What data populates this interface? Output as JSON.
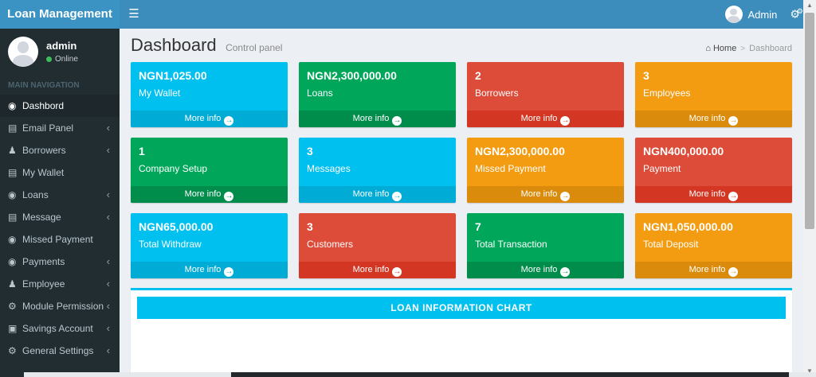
{
  "glyphs": {
    "hamburger": "☰",
    "gear": "⚙",
    "cogs": "⚙",
    "gauge": "◉",
    "panel": "▤",
    "users": "♟",
    "person": "♟",
    "savings": "▣",
    "home": "⌂",
    "chevron": "‹",
    "arrow": "→",
    "caret_up": "▲",
    "caret_down": "▼",
    "breadcrumb_sep": ">"
  },
  "app": {
    "title": "Loan Management"
  },
  "header": {
    "user_label": "Admin"
  },
  "sidebar": {
    "user": {
      "name": "admin",
      "status": "Online"
    },
    "section_label": "MAIN NAVIGATION",
    "items": [
      {
        "label": "Dashbord",
        "icon": "gauge",
        "active": true,
        "expandable": false
      },
      {
        "label": "Email Panel",
        "icon": "panel",
        "active": false,
        "expandable": true
      },
      {
        "label": "Borrowers",
        "icon": "users",
        "active": false,
        "expandable": true
      },
      {
        "label": "My Wallet",
        "icon": "panel",
        "active": false,
        "expandable": false
      },
      {
        "label": "Loans",
        "icon": "gauge",
        "active": false,
        "expandable": true
      },
      {
        "label": "Message",
        "icon": "panel",
        "active": false,
        "expandable": true
      },
      {
        "label": "Missed Payment",
        "icon": "gauge",
        "active": false,
        "expandable": false
      },
      {
        "label": "Payments",
        "icon": "gauge",
        "active": false,
        "expandable": true
      },
      {
        "label": "Employee",
        "icon": "person",
        "active": false,
        "expandable": true
      },
      {
        "label": "Module Permission",
        "icon": "cogs",
        "active": false,
        "expandable": true
      },
      {
        "label": "Savings Account",
        "icon": "savings",
        "active": false,
        "expandable": true
      },
      {
        "label": "General Settings",
        "icon": "gear",
        "active": false,
        "expandable": true
      }
    ]
  },
  "content": {
    "page_title": "Dashboard",
    "page_subtitle": "Control panel",
    "breadcrumb": {
      "home": "Home",
      "current": "Dashboard"
    },
    "boxes": [
      {
        "value": "NGN1,025.00",
        "label": "My Wallet",
        "color": "aqua",
        "more": "More info"
      },
      {
        "value": "NGN2,300,000.00",
        "label": "Loans",
        "color": "green",
        "more": "More info"
      },
      {
        "value": "2",
        "label": "Borrowers",
        "color": "red",
        "more": "More info"
      },
      {
        "value": "3",
        "label": "Employees",
        "color": "yellow",
        "more": "More info"
      },
      {
        "value": "1",
        "label": "Company Setup",
        "color": "green",
        "more": "More info"
      },
      {
        "value": "3",
        "label": "Messages",
        "color": "aqua",
        "more": "More info"
      },
      {
        "value": "NGN2,300,000.00",
        "label": "Missed Payment",
        "color": "yellow",
        "more": "More info"
      },
      {
        "value": "NGN400,000.00",
        "label": "Payment",
        "color": "red",
        "more": "More info"
      },
      {
        "value": "NGN65,000.00",
        "label": "Total Withdraw",
        "color": "aqua",
        "more": "More info"
      },
      {
        "value": "3",
        "label": "Customers",
        "color": "red",
        "more": "More info"
      },
      {
        "value": "7",
        "label": "Total Transaction",
        "color": "green",
        "more": "More info"
      },
      {
        "value": "NGN1,050,000.00",
        "label": "Total Deposit",
        "color": "yellow",
        "more": "More info"
      }
    ],
    "chart_panel": {
      "title": "LOAN INFORMATION CHART"
    }
  },
  "colors": {
    "navbar": "#3c8dbc",
    "sidebar": "#222d32",
    "aqua": "#00c0ef",
    "green": "#00a65a",
    "red": "#dd4b39",
    "yellow": "#f39c12",
    "online_dot": "#3dbd5b",
    "content_bg": "#ecf0f5"
  }
}
